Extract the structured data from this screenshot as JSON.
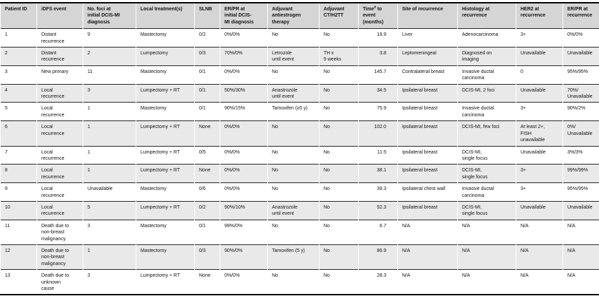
{
  "colors": {
    "header_bg": "#d5d5d5",
    "alt_row_bg": "#e9e9e9",
    "row_bg": "#ffffff",
    "row_rule": "#222222",
    "frame": "#000000",
    "text": "#111111"
  },
  "table": {
    "column_keys": [
      "patient-id",
      "idfs-event",
      "no-foci-initial",
      "local-treatment",
      "slnb",
      "er-pr-initial",
      "adjuvant-antiestrogen",
      "adjuvant-ct-h2tt",
      "time-to-event",
      "site-of-recurrence",
      "histology-at-recurrence",
      "her2-at-recurrence",
      "er-pr-at-recurrence"
    ],
    "headers": [
      {
        "label": "Patient ID"
      },
      {
        "label": "iDFS event"
      },
      {
        "label": "No. foci at\ninitial DCIS-MI\ndiagnosis"
      },
      {
        "label": "Local treatment(s)"
      },
      {
        "label": "SLNB"
      },
      {
        "label": "ER/PR at\ninitial DCIS-\nMI diagnosis"
      },
      {
        "label": "Adjuvant\nantiestrogen\ntherapy"
      },
      {
        "label": "Adjuvant\nCT/H2TT"
      },
      {
        "label": "Time",
        "sup": "a",
        "suffix": " to\nevent\n(months)"
      },
      {
        "label": "Site of recurrence"
      },
      {
        "label": "Histology at\nrecurrence"
      },
      {
        "label": "HER2 at\nrecurrence"
      },
      {
        "label": "ER/PR at\nrecurrence"
      }
    ],
    "rows": [
      [
        "1",
        "Distant\nrecurrence",
        "9",
        "Mastectomy",
        "0/2",
        "0%/0%",
        "No",
        "No",
        "18.9",
        "Liver",
        "Adenocarcinoma",
        "3+",
        "0%/0%"
      ],
      [
        "2",
        "Distant\nrecurrence",
        "2",
        "Lumpectomy",
        "0/3",
        "70%/0%",
        "Letrozole\nuntil event",
        "TH x\n9 weeks",
        "3.8",
        "Leptomeningeal",
        "Diagnosed on\nimaging",
        "Unavailable",
        "Unavailable"
      ],
      [
        "3",
        "New primary",
        "11",
        "Mastectomy",
        "0/1",
        "0%/0%",
        "No",
        "No",
        "145.7",
        "Contralateral breast",
        "Invasive ductal\ncarcinoma",
        "0",
        "95%/95%"
      ],
      [
        "4",
        "Local\nrecurrence",
        "3",
        "Lumpectomy + RT",
        "0/1",
        "50%/30%",
        "Anastrozole\nuntil event",
        "No",
        "34.5",
        "Ipsilateral breast",
        "DCIS-MI, 2 foci",
        "Unavailable",
        "70%/\nUnavailable"
      ],
      [
        "5",
        "Local\nrecurrence",
        "1",
        "Mastectomy",
        "0/1",
        "90%/15%",
        "Tamoxifen (≥5 y)",
        "No",
        "75.9",
        "Ipsilateral breast",
        "Invasive ductal\ncarcinoma",
        "3+",
        "90%/2%"
      ],
      [
        "6",
        "Local\nrecurrence",
        "1",
        "Lumpectomy + RT",
        "None",
        "0%/0%",
        "No",
        "No",
        "102.0",
        "Ipsilateral breast",
        "DCIS-MI, few foci",
        "At least 2+,\nFISH\nunavailable",
        "0%/\nUnavailable"
      ],
      [
        "7",
        "Local\nrecurrence",
        "1",
        "Lumpectomy + RT",
        "0/5",
        "0%/0%",
        "No",
        "No",
        "11.5",
        "Ipsilateral breast",
        "DCIS-MI,\nsingle focus",
        "Unavailable",
        "3%/3%"
      ],
      [
        "8",
        "Local\nrecurrence",
        "1",
        "Lumpectomy + RT",
        "None",
        "0%/0%",
        "No",
        "No",
        "38.1",
        "Ipsilateral breast",
        "DCIS-MI,\nsingle focus",
        "3+",
        "99%/99%"
      ],
      [
        "9",
        "Local\nrecurrence",
        "Unavailable",
        "Mastectomy",
        "0/6",
        "0%/0%",
        "No",
        "No",
        "39.3",
        "Ipsilateral chest wall",
        "Invasive ductal\ncarcinoma",
        "3+",
        "95%/95%"
      ],
      [
        "10",
        "Local\nrecurrence",
        "5",
        "Lumpectomy + RT",
        "0/2",
        "90%/10%",
        "Anastrozole\nuntil event",
        "No",
        "52.3",
        "Ipsilateral breast",
        "DCIS-MI,\nsingle focus",
        "Unavailable",
        "Unavailable"
      ],
      [
        "11",
        "Death due to\nnon-breast\nmalignancy",
        "3",
        "Mastectomy",
        "0/1",
        "99%/0%",
        "No",
        "No",
        "6.7",
        "N/A",
        "N/A",
        "N/A",
        "N/A"
      ],
      [
        "12",
        "Death due to\nnon-breast\nmalignancy",
        "1",
        "Mastectomy",
        "0/3",
        "90%/0%",
        "Tamoxifen (5 y)",
        "No",
        "86.9",
        "N/A",
        "N/A",
        "N/A",
        "N/A"
      ],
      [
        "13",
        "Death due to\nunknown\ncause",
        "3",
        "Lumpectomy + RT",
        "None",
        "0%/0%",
        "No",
        "No",
        "28.3",
        "N/A",
        "N/A",
        "N/A",
        "N/A"
      ]
    ]
  }
}
